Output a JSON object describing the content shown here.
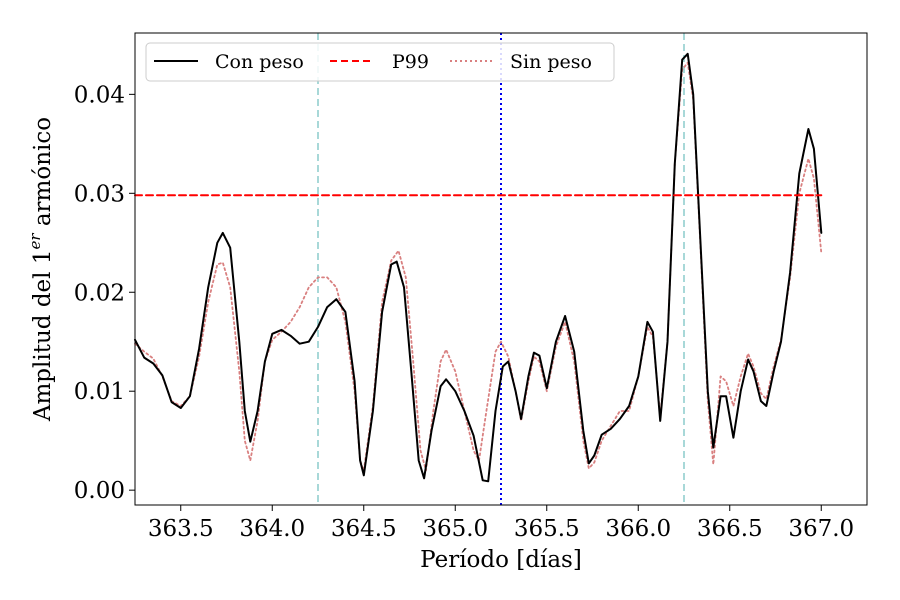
{
  "chart_data": {
    "type": "line",
    "xlabel": "Período [días]",
    "ylabel_prefix": "Amplitud del 1",
    "ylabel_sup": "er",
    "ylabel_suffix": " armónico",
    "xlim": [
      363.25,
      367.25
    ],
    "ylim": [
      -0.0015,
      0.0462
    ],
    "x_ticks": [
      363.5,
      364.0,
      364.5,
      365.0,
      365.5,
      366.0,
      366.5,
      367.0
    ],
    "x_tick_labels": [
      "363.5",
      "364.0",
      "364.5",
      "365.0",
      "365.5",
      "366.0",
      "366.5",
      "367.0"
    ],
    "y_ticks": [
      0.0,
      0.01,
      0.02,
      0.03,
      0.04
    ],
    "y_tick_labels": [
      "0.00",
      "0.01",
      "0.02",
      "0.03",
      "0.04"
    ],
    "grid": false,
    "legend_position": "top-left",
    "series": [
      {
        "name": "Con peso",
        "color": "#000000",
        "style": "solid",
        "points": [
          [
            363.25,
            0.0152
          ],
          [
            363.3,
            0.0134
          ],
          [
            363.35,
            0.0128
          ],
          [
            363.4,
            0.0116
          ],
          [
            363.45,
            0.0089
          ],
          [
            363.5,
            0.0083
          ],
          [
            363.55,
            0.0095
          ],
          [
            363.6,
            0.0143
          ],
          [
            363.65,
            0.0205
          ],
          [
            363.7,
            0.025
          ],
          [
            363.73,
            0.026
          ],
          [
            363.77,
            0.0245
          ],
          [
            363.82,
            0.015
          ],
          [
            363.85,
            0.008
          ],
          [
            363.88,
            0.0049
          ],
          [
            363.92,
            0.008
          ],
          [
            363.96,
            0.013
          ],
          [
            364.0,
            0.0158
          ],
          [
            364.05,
            0.0162
          ],
          [
            364.1,
            0.0156
          ],
          [
            364.15,
            0.0148
          ],
          [
            364.2,
            0.015
          ],
          [
            364.25,
            0.0165
          ],
          [
            364.3,
            0.0185
          ],
          [
            364.35,
            0.0193
          ],
          [
            364.4,
            0.018
          ],
          [
            364.45,
            0.011
          ],
          [
            364.48,
            0.003
          ],
          [
            364.5,
            0.0015
          ],
          [
            364.55,
            0.008
          ],
          [
            364.6,
            0.018
          ],
          [
            364.65,
            0.0228
          ],
          [
            364.68,
            0.0231
          ],
          [
            364.72,
            0.0205
          ],
          [
            364.76,
            0.012
          ],
          [
            364.8,
            0.003
          ],
          [
            364.83,
            0.0012
          ],
          [
            364.87,
            0.006
          ],
          [
            364.92,
            0.0105
          ],
          [
            364.95,
            0.0112
          ],
          [
            365.0,
            0.01
          ],
          [
            365.05,
            0.008
          ],
          [
            365.1,
            0.0055
          ],
          [
            365.15,
            0.001
          ],
          [
            365.18,
            0.0009
          ],
          [
            365.22,
            0.008
          ],
          [
            365.26,
            0.0125
          ],
          [
            365.29,
            0.013
          ],
          [
            365.33,
            0.01
          ],
          [
            365.36,
            0.0072
          ],
          [
            365.4,
            0.0115
          ],
          [
            365.43,
            0.0139
          ],
          [
            365.46,
            0.0136
          ],
          [
            365.5,
            0.0103
          ],
          [
            365.55,
            0.015
          ],
          [
            365.6,
            0.0176
          ],
          [
            365.65,
            0.014
          ],
          [
            365.7,
            0.006
          ],
          [
            365.73,
            0.0027
          ],
          [
            365.76,
            0.0035
          ],
          [
            365.8,
            0.0056
          ],
          [
            365.85,
            0.0062
          ],
          [
            365.9,
            0.0072
          ],
          [
            365.95,
            0.0085
          ],
          [
            366.0,
            0.0115
          ],
          [
            366.05,
            0.017
          ],
          [
            366.08,
            0.016
          ],
          [
            366.12,
            0.007
          ],
          [
            366.16,
            0.015
          ],
          [
            366.2,
            0.033
          ],
          [
            366.24,
            0.0435
          ],
          [
            366.27,
            0.0441
          ],
          [
            366.3,
            0.04
          ],
          [
            366.34,
            0.025
          ],
          [
            366.38,
            0.01
          ],
          [
            366.41,
            0.0043
          ],
          [
            366.45,
            0.0095
          ],
          [
            366.48,
            0.0095
          ],
          [
            366.52,
            0.0053
          ],
          [
            366.56,
            0.01
          ],
          [
            366.6,
            0.0132
          ],
          [
            366.63,
            0.012
          ],
          [
            366.67,
            0.009
          ],
          [
            366.7,
            0.0085
          ],
          [
            366.74,
            0.012
          ],
          [
            366.78,
            0.015
          ],
          [
            366.83,
            0.022
          ],
          [
            366.88,
            0.032
          ],
          [
            366.93,
            0.0365
          ],
          [
            366.96,
            0.0345
          ],
          [
            367.0,
            0.026
          ]
        ]
      },
      {
        "name": "P99",
        "color": "#ff0000",
        "style": "dashed",
        "points": [
          [
            363.25,
            0.0298
          ],
          [
            367.0,
            0.0298
          ]
        ]
      },
      {
        "name": "Sin peso",
        "color": "#d98080",
        "style": "dotted",
        "points": [
          [
            363.25,
            0.0148
          ],
          [
            363.3,
            0.014
          ],
          [
            363.35,
            0.0133
          ],
          [
            363.4,
            0.0115
          ],
          [
            363.45,
            0.009
          ],
          [
            363.5,
            0.0085
          ],
          [
            363.55,
            0.0095
          ],
          [
            363.6,
            0.0135
          ],
          [
            363.65,
            0.019
          ],
          [
            363.7,
            0.0228
          ],
          [
            363.73,
            0.023
          ],
          [
            363.77,
            0.0205
          ],
          [
            363.82,
            0.012
          ],
          [
            363.85,
            0.005
          ],
          [
            363.88,
            0.003
          ],
          [
            363.92,
            0.007
          ],
          [
            363.96,
            0.013
          ],
          [
            364.0,
            0.0152
          ],
          [
            364.05,
            0.016
          ],
          [
            364.1,
            0.017
          ],
          [
            364.15,
            0.0185
          ],
          [
            364.2,
            0.0205
          ],
          [
            364.25,
            0.0215
          ],
          [
            364.3,
            0.0215
          ],
          [
            364.35,
            0.0205
          ],
          [
            364.4,
            0.017
          ],
          [
            364.45,
            0.01
          ],
          [
            364.48,
            0.003
          ],
          [
            364.5,
            0.002
          ],
          [
            364.55,
            0.0085
          ],
          [
            364.6,
            0.019
          ],
          [
            364.65,
            0.0232
          ],
          [
            364.69,
            0.0242
          ],
          [
            364.73,
            0.0215
          ],
          [
            364.77,
            0.013
          ],
          [
            364.81,
            0.004
          ],
          [
            364.84,
            0.002
          ],
          [
            364.88,
            0.008
          ],
          [
            364.92,
            0.013
          ],
          [
            364.95,
            0.0142
          ],
          [
            365.0,
            0.012
          ],
          [
            365.05,
            0.008
          ],
          [
            365.1,
            0.004
          ],
          [
            365.13,
            0.003
          ],
          [
            365.17,
            0.008
          ],
          [
            365.22,
            0.014
          ],
          [
            365.25,
            0.015
          ],
          [
            365.29,
            0.0135
          ],
          [
            365.33,
            0.01
          ],
          [
            365.36,
            0.007
          ],
          [
            365.4,
            0.011
          ],
          [
            365.43,
            0.0135
          ],
          [
            365.46,
            0.013
          ],
          [
            365.5,
            0.01
          ],
          [
            365.55,
            0.0145
          ],
          [
            365.6,
            0.017
          ],
          [
            365.65,
            0.013
          ],
          [
            365.7,
            0.005
          ],
          [
            365.73,
            0.0022
          ],
          [
            365.76,
            0.0028
          ],
          [
            365.8,
            0.005
          ],
          [
            365.85,
            0.0065
          ],
          [
            365.9,
            0.008
          ],
          [
            365.95,
            0.008
          ],
          [
            366.0,
            0.0115
          ],
          [
            366.05,
            0.0165
          ],
          [
            366.08,
            0.0155
          ],
          [
            366.12,
            0.0075
          ],
          [
            366.16,
            0.015
          ],
          [
            366.2,
            0.033
          ],
          [
            366.24,
            0.0425
          ],
          [
            366.27,
            0.0432
          ],
          [
            366.3,
            0.0395
          ],
          [
            366.34,
            0.0245
          ],
          [
            366.38,
            0.009
          ],
          [
            366.41,
            0.0026
          ],
          [
            366.45,
            0.0115
          ],
          [
            366.48,
            0.011
          ],
          [
            366.52,
            0.0085
          ],
          [
            366.56,
            0.0115
          ],
          [
            366.6,
            0.0138
          ],
          [
            366.63,
            0.0125
          ],
          [
            366.67,
            0.0098
          ],
          [
            366.7,
            0.0092
          ],
          [
            366.74,
            0.0125
          ],
          [
            366.78,
            0.0152
          ],
          [
            366.83,
            0.0215
          ],
          [
            366.88,
            0.03
          ],
          [
            366.93,
            0.0335
          ],
          [
            366.96,
            0.0315
          ],
          [
            367.0,
            0.024
          ]
        ]
      }
    ],
    "vertical_lines": [
      {
        "x": 364.25,
        "color": "#a8d8d8",
        "style": "dashed"
      },
      {
        "x": 365.25,
        "color": "#0000ee",
        "style": "dotted"
      },
      {
        "x": 366.25,
        "color": "#a8d8d8",
        "style": "dashed"
      }
    ]
  }
}
